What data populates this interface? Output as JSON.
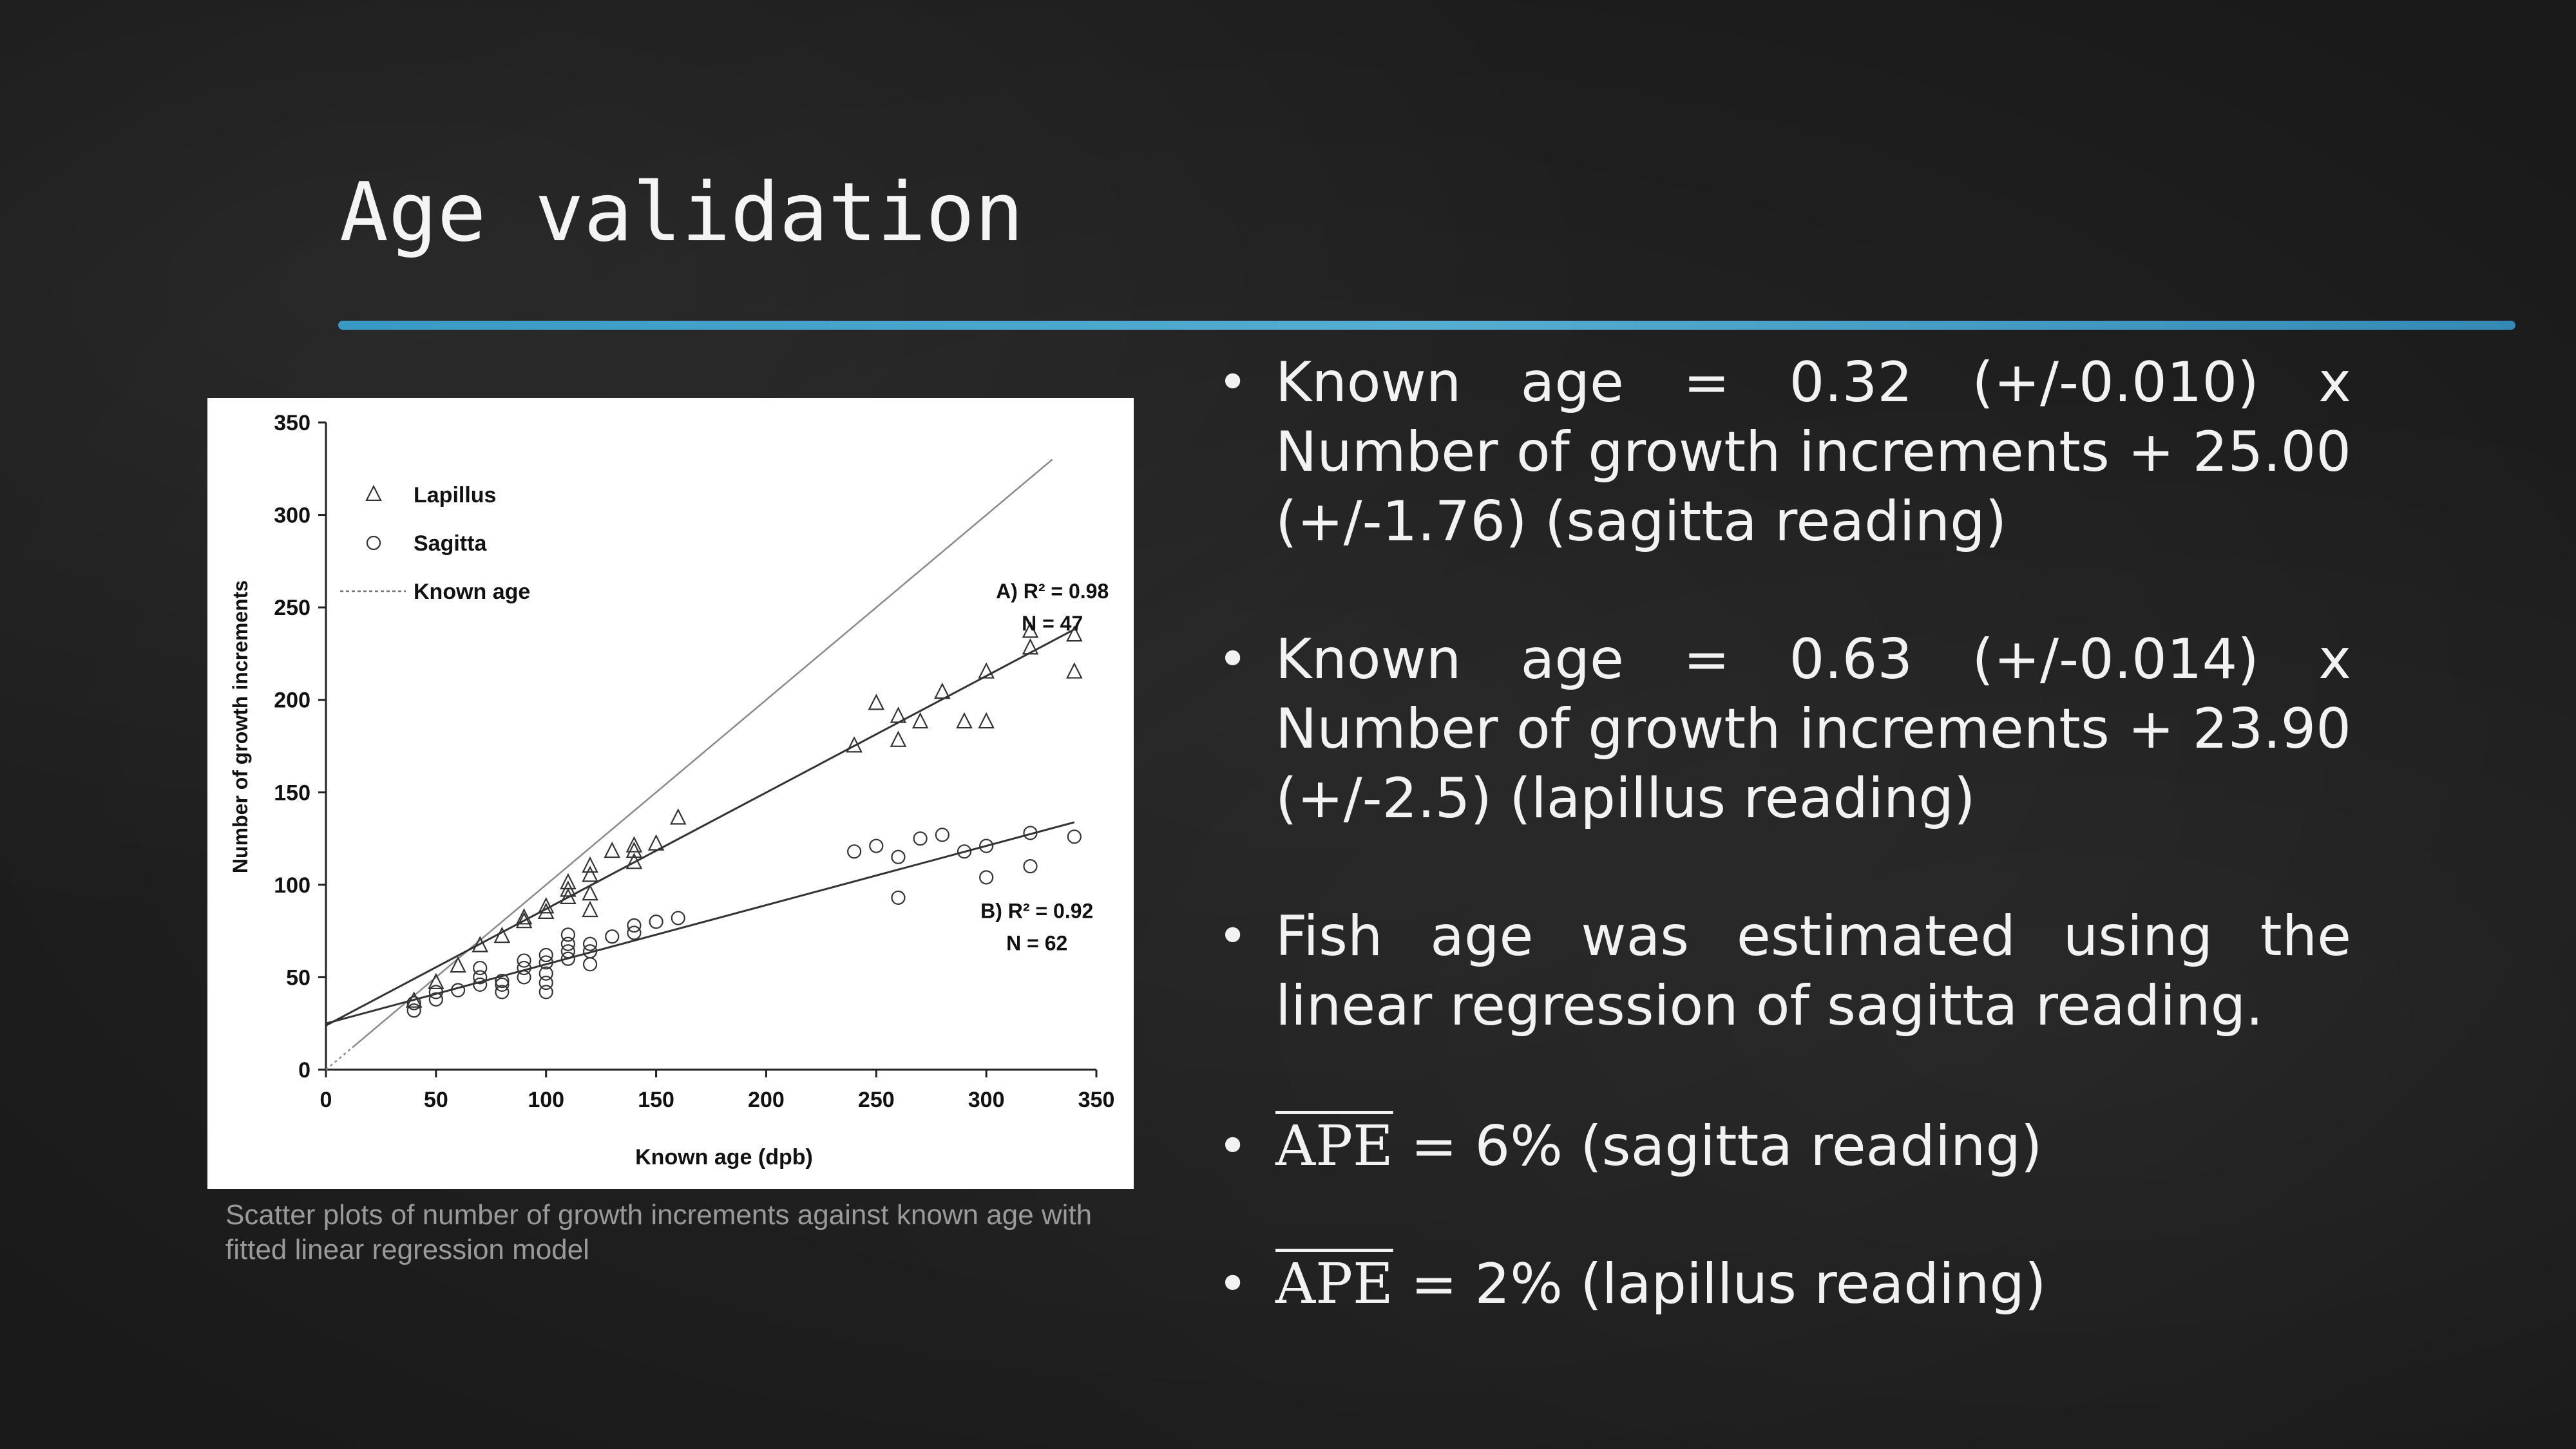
{
  "slide": {
    "title": "Age validation",
    "accent_color": "#3aa6d6",
    "caption": "Scatter plots of number of growth increments against known age with fitted linear regression model"
  },
  "bullets": [
    {
      "text": "Known age = 0.32 (+/-0.010) x Number of growth increments + 25.00 (+/-1.76) (sagitta reading)"
    },
    {
      "text": "Known age = 0.63 (+/-0.014) x Number of growth increments + 23.90 (+/-2.5) (lapillus reading)"
    },
    {
      "text": "Fish age was estimated using the linear regression of sagitta reading."
    },
    {
      "ape": "APE",
      "text": " = 6%  (sagitta reading)"
    },
    {
      "ape": "APE",
      "text": " = 2%  (lapillus reading)"
    }
  ],
  "chart_data": {
    "type": "scatter",
    "xlabel": "Known age (dpb)",
    "ylabel": "Number of growth increments",
    "xlim": [
      0,
      350
    ],
    "ylim": [
      0,
      350
    ],
    "x_ticks": [
      "0",
      "50",
      "100",
      "150",
      "200",
      "250",
      "300",
      "350"
    ],
    "y_ticks": [
      "0",
      "50",
      "100",
      "150",
      "200",
      "250",
      "300",
      "350"
    ],
    "grid": false,
    "legend_position": "top-left",
    "legend": [
      {
        "label": "Lapillus",
        "marker": "triangle"
      },
      {
        "label": "Sagitta",
        "marker": "circle"
      },
      {
        "label": "Known age",
        "marker": "dotted-line"
      }
    ],
    "series": [
      {
        "name": "Lapillus",
        "marker": "triangle",
        "points": [
          [
            40,
            37
          ],
          [
            50,
            47
          ],
          [
            60,
            56
          ],
          [
            70,
            67
          ],
          [
            80,
            72
          ],
          [
            90,
            80
          ],
          [
            90,
            82
          ],
          [
            100,
            85
          ],
          [
            100,
            88
          ],
          [
            110,
            93
          ],
          [
            110,
            97
          ],
          [
            110,
            101
          ],
          [
            120,
            86
          ],
          [
            120,
            95
          ],
          [
            120,
            105
          ],
          [
            120,
            110
          ],
          [
            130,
            118
          ],
          [
            140,
            112
          ],
          [
            140,
            118
          ],
          [
            140,
            121
          ],
          [
            150,
            122
          ],
          [
            160,
            136
          ],
          [
            240,
            175
          ],
          [
            250,
            198
          ],
          [
            260,
            178
          ],
          [
            260,
            191
          ],
          [
            270,
            188
          ],
          [
            280,
            204
          ],
          [
            290,
            188
          ],
          [
            300,
            188
          ],
          [
            300,
            215
          ],
          [
            320,
            228
          ],
          [
            320,
            237
          ],
          [
            340,
            215
          ],
          [
            340,
            235
          ]
        ]
      },
      {
        "name": "Sagitta",
        "marker": "circle",
        "points": [
          [
            40,
            32
          ],
          [
            40,
            36
          ],
          [
            50,
            38
          ],
          [
            50,
            42
          ],
          [
            60,
            43
          ],
          [
            70,
            46
          ],
          [
            70,
            50
          ],
          [
            70,
            55
          ],
          [
            80,
            42
          ],
          [
            80,
            46
          ],
          [
            80,
            48
          ],
          [
            90,
            50
          ],
          [
            90,
            55
          ],
          [
            90,
            59
          ],
          [
            100,
            42
          ],
          [
            100,
            47
          ],
          [
            100,
            52
          ],
          [
            100,
            58
          ],
          [
            100,
            62
          ],
          [
            110,
            60
          ],
          [
            110,
            64
          ],
          [
            110,
            68
          ],
          [
            110,
            73
          ],
          [
            120,
            57
          ],
          [
            120,
            64
          ],
          [
            120,
            68
          ],
          [
            130,
            72
          ],
          [
            140,
            74
          ],
          [
            140,
            78
          ],
          [
            150,
            80
          ],
          [
            160,
            82
          ],
          [
            240,
            118
          ],
          [
            250,
            121
          ],
          [
            260,
            93
          ],
          [
            260,
            115
          ],
          [
            270,
            125
          ],
          [
            280,
            127
          ],
          [
            290,
            118
          ],
          [
            300,
            104
          ],
          [
            300,
            121
          ],
          [
            320,
            110
          ],
          [
            320,
            128
          ],
          [
            340,
            126
          ]
        ]
      }
    ],
    "lines": [
      {
        "name": "Known age",
        "slope": 1,
        "intercept": 0,
        "style": "dotted"
      },
      {
        "name": "Lapillus fit",
        "slope": 0.63,
        "intercept": 23.9,
        "style": "solid"
      },
      {
        "name": "Sagitta fit",
        "slope": 0.32,
        "intercept": 25.0,
        "style": "solid"
      }
    ],
    "annotations": [
      {
        "lines": [
          "A) R² = 0.98",
          "N = 47"
        ],
        "x": 330,
        "y": 255
      },
      {
        "lines": [
          "B) R² = 0.92",
          "N = 62"
        ],
        "x": 323,
        "y": 82
      }
    ]
  }
}
